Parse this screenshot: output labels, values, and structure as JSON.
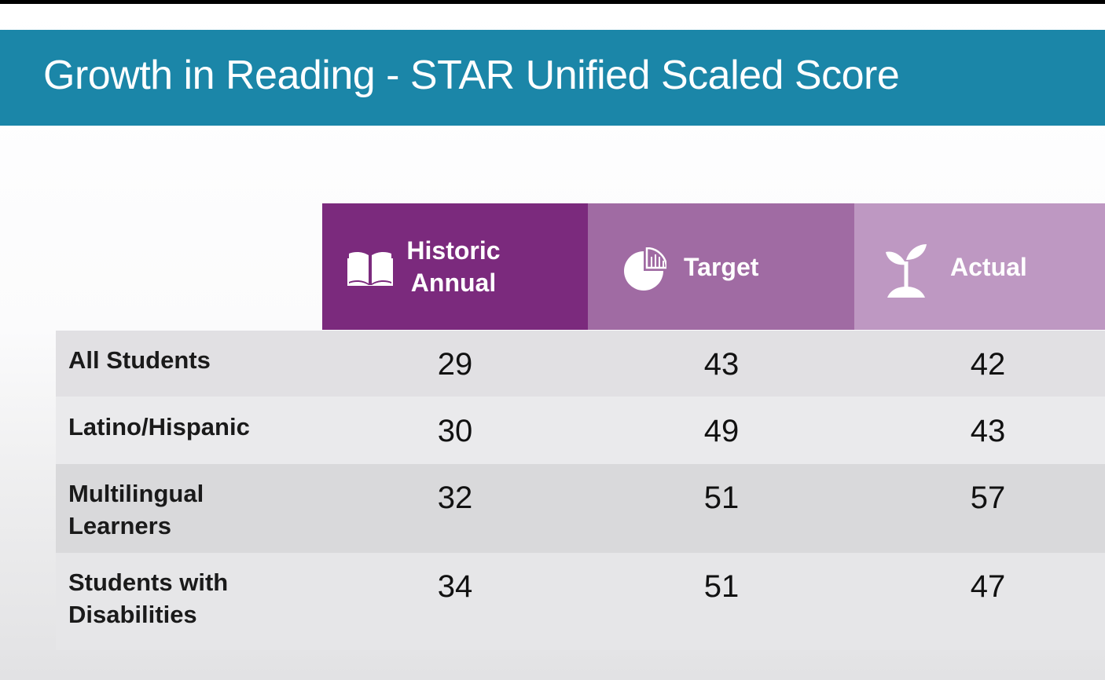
{
  "slide": {
    "title": "Growth in Reading - STAR Unified Scaled Score"
  },
  "colors": {
    "banner": "#1b86a8",
    "historic_header": "#7b2a7d",
    "target_header": "#a06ba3",
    "actual_header": "#be98c2"
  },
  "table": {
    "columns": [
      {
        "label": "Historic\nAnnual",
        "icon": "open-book-icon"
      },
      {
        "label": "Target",
        "icon": "pie-chart-icon"
      },
      {
        "label": "Actual",
        "icon": "sprout-icon"
      }
    ],
    "rows": [
      {
        "label": "All Students",
        "values": [
          "29",
          "43",
          "42"
        ]
      },
      {
        "label": "Latino/Hispanic",
        "values": [
          "30",
          "49",
          "43"
        ]
      },
      {
        "label": "Multilingual\nLearners",
        "values": [
          "32",
          "51",
          "57"
        ]
      },
      {
        "label": "Students with\nDisabilities",
        "values": [
          "34",
          "51",
          "47"
        ]
      }
    ]
  }
}
